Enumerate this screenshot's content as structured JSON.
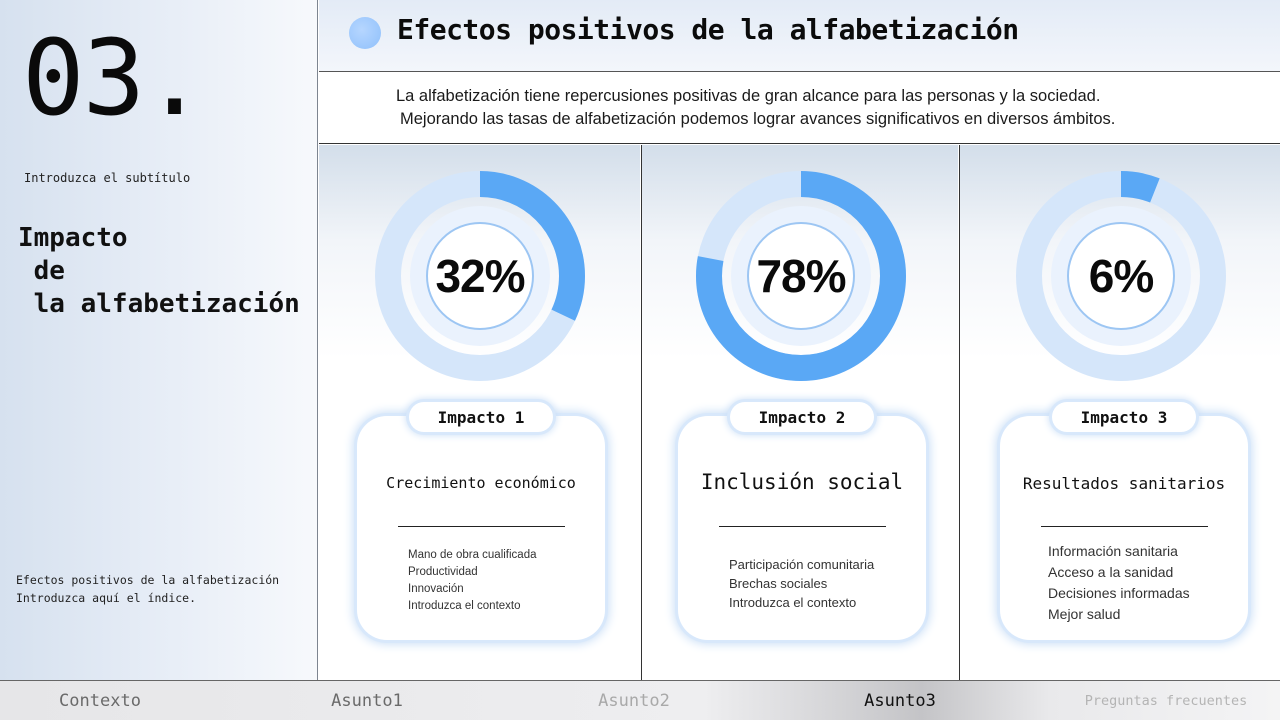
{
  "left": {
    "number": "03.",
    "subtitle": "Introduzca el subtítulo",
    "section_title": "Impacto\n de\n la alfabetización",
    "index_line1": "Efectos positivos de la alfabetización",
    "index_line2": "Introduzca aquí el índice."
  },
  "header": {
    "title": "Efectos positivos de la alfabetización"
  },
  "intro": {
    "line1": "La alfabetización tiene repercusiones positivas de gran alcance para las personas y la sociedad.",
    "line2": "Mejorando las tasas de alfabetización podemos lograr avances significativos en diversos ámbitos."
  },
  "colors": {
    "accent": "#5aa8f5",
    "ring_light": "#d5e6fa",
    "ring_mid": "#e6f0fc",
    "card_glow": "#c9def6"
  },
  "impacts": [
    {
      "label": "Impacto 1",
      "percent": 32,
      "percent_text": "32%",
      "title": "Crecimiento económico",
      "items": [
        "Mano de obra cualificada",
        "Productividad",
        "Innovación",
        "Introduzca el contexto"
      ]
    },
    {
      "label": "Impacto 2",
      "percent": 78,
      "percent_text": "78%",
      "title": "Inclusión social",
      "items": [
        "Participación comunitaria",
        "Brechas sociales",
        "Introduzca el contexto"
      ]
    },
    {
      "label": "Impacto 3",
      "percent": 6,
      "percent_text": "6%",
      "title": "Resultados sanitarios",
      "items": [
        "Información sanitaria",
        "Acceso a la sanidad",
        "Decisiones informadas",
        "Mejor salud"
      ]
    }
  ],
  "nav": {
    "items": [
      "Contexto",
      "Asunto1",
      "Asunto2",
      "Asunto3",
      "Preguntas frecuentes"
    ],
    "active": "Asunto3"
  }
}
